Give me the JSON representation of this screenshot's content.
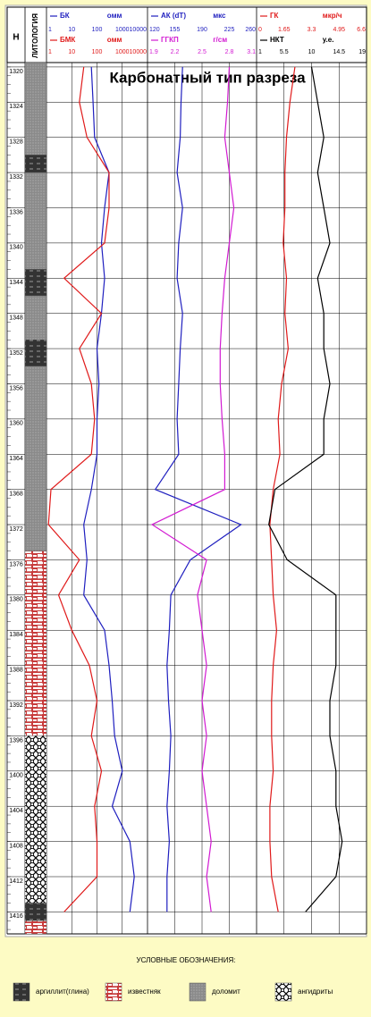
{
  "title": "Карбонатный тип разреза",
  "depth_axis": {
    "title": "H",
    "lith_title": "ЛИТОЛОГИЯ",
    "ylim": [
      1319.5,
      1418.5
    ],
    "yticks": [
      1320,
      1324,
      1328,
      1332,
      1336,
      1340,
      1344,
      1348,
      1352,
      1356,
      1360,
      1364,
      1368,
      1372,
      1376,
      1380,
      1384,
      1388,
      1392,
      1396,
      1400,
      1404,
      1408,
      1412,
      1416
    ],
    "samples": [
      1320,
      1324,
      1328,
      1332,
      1336,
      1340,
      1344,
      1348,
      1352,
      1356,
      1360,
      1364,
      1368,
      1372,
      1376,
      1380,
      1384,
      1388,
      1392,
      1396,
      1400,
      1404,
      1408,
      1412,
      1416
    ]
  },
  "chart_data": [
    {
      "type": "line",
      "series": [
        {
          "name": "БК",
          "unit": "омм",
          "color": "#1f1fbf",
          "scale": "log",
          "xlim": [
            1,
            10000
          ],
          "xticks": [
            1,
            10,
            100,
            1000,
            10000
          ],
          "values": [
            60,
            70,
            80,
            300,
            200,
            150,
            200,
            150,
            100,
            120,
            100,
            100,
            60,
            30,
            40,
            30,
            200,
            300,
            400,
            500,
            1000,
            400,
            2000,
            3000,
            2000
          ]
        },
        {
          "name": "БМК",
          "unit": "омм",
          "color": "#e01a1a",
          "scale": "log",
          "xlim": [
            1,
            10000
          ],
          "xticks": [
            1,
            10,
            100,
            1000,
            10000
          ],
          "values": [
            30,
            20,
            40,
            300,
            300,
            200,
            5,
            150,
            20,
            60,
            80,
            60,
            1.5,
            1.2,
            20,
            3,
            10,
            50,
            100,
            60,
            150,
            80,
            100,
            100,
            5
          ]
        }
      ]
    },
    {
      "type": "line",
      "series": [
        {
          "name": "АК (dT)",
          "unit": "мкс",
          "color": "#1f1fbf",
          "scale": "linear",
          "xlim": [
            120,
            260
          ],
          "xticks": [
            120,
            155,
            190,
            225,
            260
          ],
          "values": [
            165,
            163,
            162,
            158,
            165,
            160,
            158,
            165,
            162,
            160,
            158,
            160,
            130,
            240,
            175,
            150,
            148,
            145,
            147,
            150,
            148,
            145,
            148,
            145,
            145
          ]
        },
        {
          "name": "ГГКП",
          "unit": "г/см",
          "color": "#d21ad2",
          "scale": "linear",
          "xlim": [
            1.9,
            3.1
          ],
          "xticks": [
            1.9,
            2.2,
            2.5,
            2.8,
            3.1
          ],
          "values": [
            2.8,
            2.78,
            2.75,
            2.8,
            2.85,
            2.8,
            2.75,
            2.72,
            2.7,
            2.7,
            2.72,
            2.75,
            2.75,
            1.95,
            2.55,
            2.45,
            2.5,
            2.55,
            2.5,
            2.55,
            2.5,
            2.55,
            2.6,
            2.55,
            2.6
          ]
        }
      ]
    },
    {
      "type": "line",
      "series": [
        {
          "name": "ГК",
          "unit": "мкр/ч",
          "color": "#e01a1a",
          "scale": "linear",
          "xlim": [
            0,
            6.6
          ],
          "xticks": [
            0,
            1.65,
            3.3,
            4.95,
            6.6
          ],
          "values": [
            2.3,
            2.0,
            1.8,
            1.7,
            1.7,
            1.6,
            1.8,
            1.7,
            1.9,
            1.5,
            1.3,
            1.4,
            1.0,
            0.8,
            0.9,
            1.0,
            1.2,
            1.0,
            0.9,
            0.9,
            1.0,
            0.8,
            0.8,
            0.9,
            1.3
          ]
        },
        {
          "name": "НКТ",
          "unit": "у.е.",
          "color": "#000000",
          "scale": "linear",
          "xlim": [
            1,
            19
          ],
          "xticks": [
            1,
            5.5,
            10,
            14.5,
            19
          ],
          "values": [
            10,
            11,
            12,
            11,
            12,
            13,
            11,
            12,
            12,
            13,
            12,
            12,
            4,
            3,
            6,
            14,
            14,
            14,
            13,
            13,
            14,
            14,
            15,
            14,
            9
          ]
        }
      ]
    }
  ],
  "lithology": {
    "layers": [
      {
        "from": 1319.5,
        "to": 1330,
        "rock": 2
      },
      {
        "from": 1330,
        "to": 1332,
        "rock": 0
      },
      {
        "from": 1332,
        "to": 1343,
        "rock": 2
      },
      {
        "from": 1343,
        "to": 1346,
        "rock": 0
      },
      {
        "from": 1346,
        "to": 1351,
        "rock": 2
      },
      {
        "from": 1351,
        "to": 1354,
        "rock": 0
      },
      {
        "from": 1354,
        "to": 1375,
        "rock": 2
      },
      {
        "from": 1375,
        "to": 1396,
        "rock": 1
      },
      {
        "from": 1396,
        "to": 1415,
        "rock": 3
      },
      {
        "from": 1415,
        "to": 1417,
        "rock": 0
      },
      {
        "from": 1417,
        "to": 1418.5,
        "rock": 1
      }
    ]
  },
  "legend": {
    "title": "УСЛОВНЫЕ ОБОЗНАЧЕНИЯ:",
    "items": [
      {
        "label": "аргиллит(глина)",
        "pattern": "argillite"
      },
      {
        "label": "известняк",
        "pattern": "limestone"
      },
      {
        "label": "доломит",
        "pattern": "dolomite"
      },
      {
        "label": "ангидриты",
        "pattern": "anhydrite"
      }
    ]
  }
}
